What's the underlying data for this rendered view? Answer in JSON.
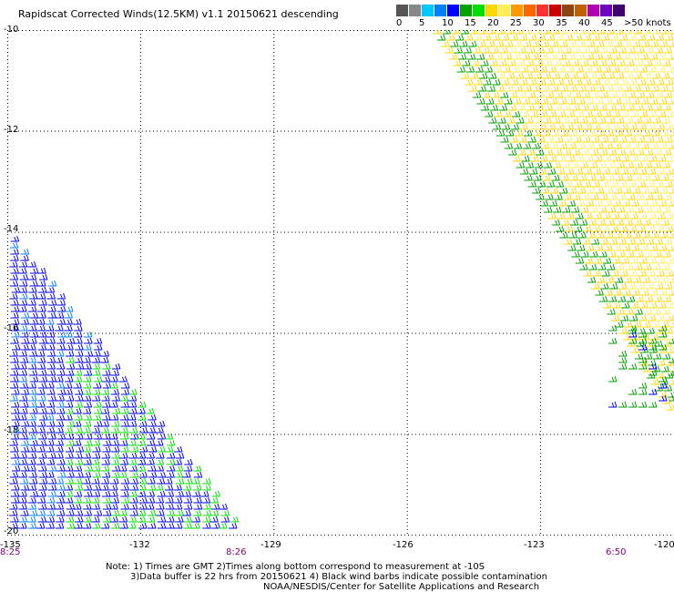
{
  "title": "Rapidscat Corrected Winds(12.5KM) v1.1 20150621 descending",
  "colorbar": {
    "labels": [
      "0",
      "5",
      "10",
      "15",
      "20",
      "25",
      "30",
      "35",
      "40",
      "45",
      ">50 knots"
    ],
    "colors": [
      "#555555",
      "#888888",
      "#00c8ff",
      "#0080ff",
      "#0000ff",
      "#00a000",
      "#00e000",
      "#ffd700",
      "#ffee55",
      "#ff9900",
      "#ff6600",
      "#ff3030",
      "#cc0000",
      "#8b4513",
      "#c06000",
      "#b000b0",
      "#7000c0",
      "#400070"
    ]
  },
  "map": {
    "lon_range": [
      -135,
      -120
    ],
    "lat_range": [
      -20,
      -10
    ],
    "lat_ticks": [
      "-10",
      "-12",
      "-14",
      "-16",
      "-18",
      "-20"
    ],
    "lon_ticks": [
      "-132",
      "-129",
      "-126",
      "-123",
      "-120"
    ],
    "lon_left_label": "-135",
    "times": [
      "8:25",
      "8:26",
      "6:50"
    ]
  },
  "notes": [
    "Note: 1) Times are GMT 2)Times along bottom correspond to measurement at -10S",
    "3)Data buffer is 22 hrs from 20150621 4) Black wind barbs indicate possible contamination",
    "NOAA/NESDIS/Center for Satellite Applications and Research"
  ]
}
